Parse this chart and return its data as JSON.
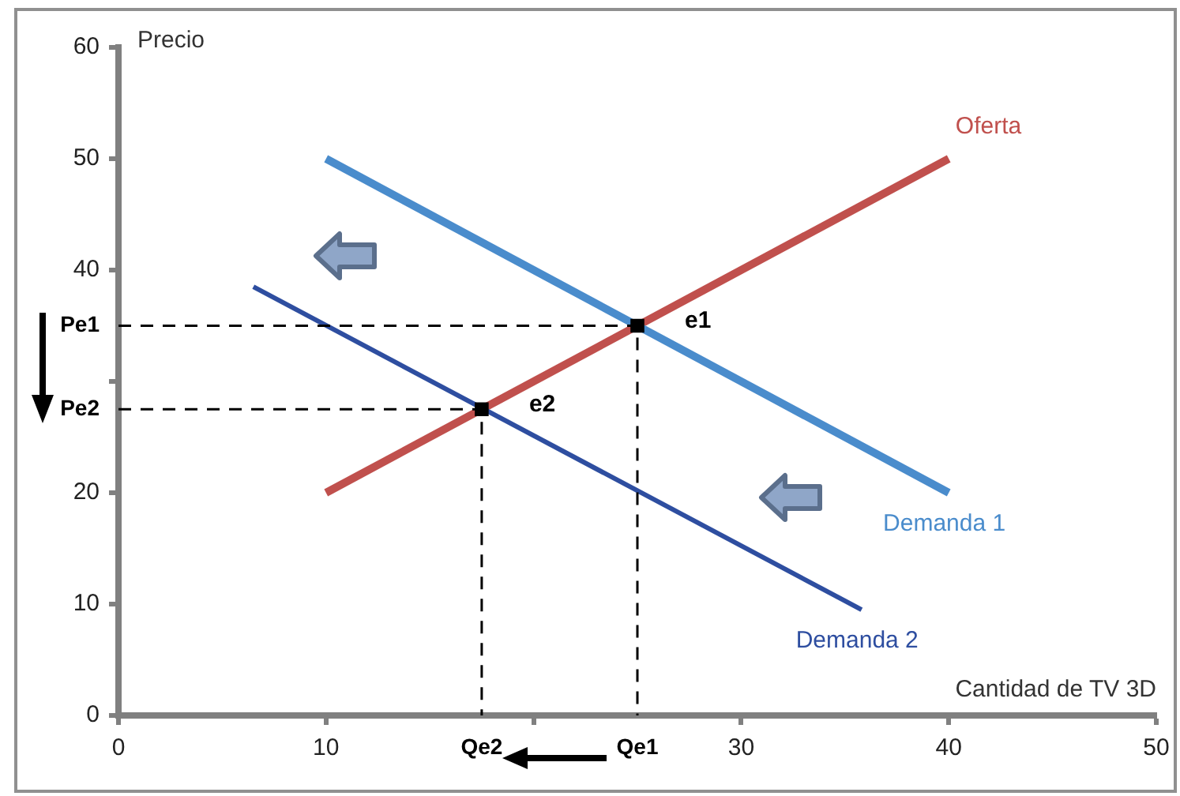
{
  "chart_data": {
    "type": "line",
    "xlabel": "Cantidad de TV 3D",
    "ylabel": "Precio",
    "xlim": [
      0,
      50
    ],
    "xticks": [
      0,
      10,
      {
        "value": 17.5,
        "label": "Qe2"
      },
      {
        "value": 20,
        "label": null
      },
      {
        "value": 25,
        "label": "Qe1"
      },
      30,
      40,
      50
    ],
    "ylim": [
      0,
      60
    ],
    "yticks": [
      0,
      10,
      20,
      {
        "value": 27.5,
        "label": "Pe2"
      },
      {
        "value": 30,
        "label": null
      },
      {
        "value": 35,
        "label": "Pe1"
      },
      40,
      50,
      60
    ],
    "grid": false,
    "legend": false,
    "series": [
      {
        "name": "Oferta",
        "color": "#c0504d",
        "x": [
          10,
          40
        ],
        "values": [
          20,
          50
        ]
      },
      {
        "name": "Demanda 1",
        "color": "#4a8ccc",
        "x": [
          10,
          40
        ],
        "values": [
          50,
          20
        ]
      },
      {
        "name": "Demanda 2",
        "color": "#2e4ea0",
        "x": [
          6.5,
          35.8
        ],
        "values": [
          38.5,
          9.5
        ]
      },
      {
        "color": "#000000",
        "line_style": "dashed",
        "x": [
          0,
          25,
          25
        ],
        "values": [
          35,
          35,
          0
        ]
      },
      {
        "color": "#000000",
        "line_style": "dashed",
        "x": [
          0,
          17.5,
          17.5
        ],
        "values": [
          27.5,
          27.5,
          0
        ]
      },
      {
        "type": "scatter",
        "color": "#000000",
        "marker": "square",
        "x": [
          17.5,
          25
        ],
        "values": [
          27.5,
          35
        ]
      }
    ],
    "annotations": [
      {
        "text": "e1",
        "x": 25,
        "y": 35
      },
      {
        "text": "e2",
        "x": 17.5,
        "y": 27.5
      }
    ]
  }
}
